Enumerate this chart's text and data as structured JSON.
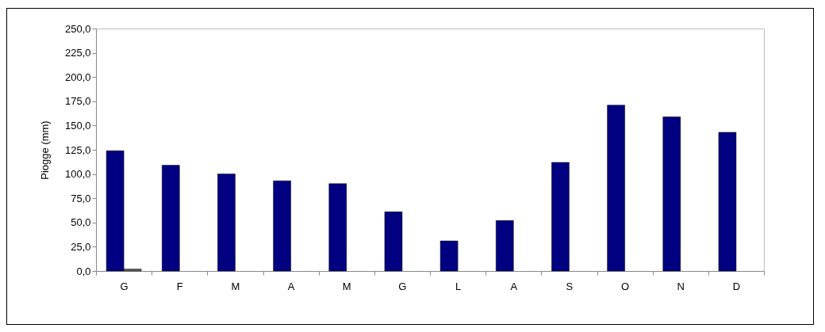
{
  "chart_data": {
    "type": "bar",
    "ylabel": "Piogge (mm)",
    "categories": [
      "G",
      "F",
      "M",
      "A",
      "M",
      "G",
      "L",
      "A",
      "S",
      "O",
      "N",
      "D"
    ],
    "series": [
      {
        "color": "#000080",
        "values": [
          124,
          109,
          100,
          93,
          90,
          61,
          31,
          52,
          112,
          171,
          159,
          143
        ]
      },
      {
        "color": "#606060",
        "values": [
          2,
          null,
          null,
          null,
          null,
          null,
          null,
          null,
          null,
          null,
          null,
          null
        ]
      }
    ],
    "ylim": [
      0,
      250
    ],
    "yticks": [
      {
        "value": 0,
        "label": "0,0"
      },
      {
        "value": 25,
        "label": "25,0"
      },
      {
        "value": 50,
        "label": "50,0"
      },
      {
        "value": 75,
        "label": "75,0"
      },
      {
        "value": 100,
        "label": "100,0"
      },
      {
        "value": 125,
        "label": "125,0"
      },
      {
        "value": 150,
        "label": "150,0"
      },
      {
        "value": 175,
        "label": "175,0"
      },
      {
        "value": 200,
        "label": "200,0"
      },
      {
        "value": 225,
        "label": "225,0"
      },
      {
        "value": 250,
        "label": "250,0"
      }
    ],
    "grid": false,
    "legend": false
  }
}
